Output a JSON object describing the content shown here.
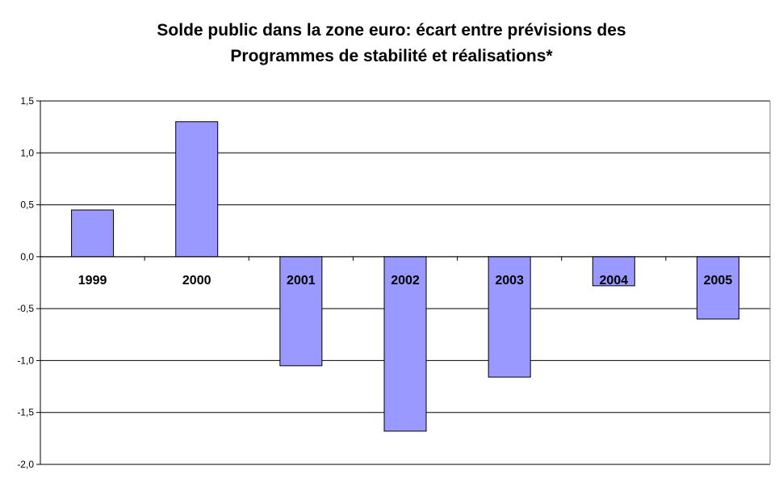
{
  "chart_data": {
    "type": "bar",
    "title": "Solde public dans la zone euro: écart entre prévisions des Programmes de stabilité et réalisations*",
    "title_lines": [
      "Solde public dans la zone euro: écart entre prévisions des",
      "Programmes de stabilité et réalisations*"
    ],
    "categories": [
      "1999",
      "2000",
      "2001",
      "2002",
      "2003",
      "2004",
      "2005"
    ],
    "values": [
      0.45,
      1.3,
      -1.05,
      -1.68,
      -1.16,
      -0.28,
      -0.6
    ],
    "ylim": [
      -2.0,
      1.5
    ],
    "yticks": [
      1.5,
      1.0,
      0.5,
      0.0,
      -0.5,
      -1.0,
      -1.5,
      -2.0
    ],
    "ytick_labels": [
      "1,5",
      "1,0",
      "0,5",
      "0,0",
      "-0,5",
      "-1,0",
      "-1,5",
      "-2,0"
    ],
    "xlabel": "",
    "ylabel": "",
    "grid": true,
    "legend": false,
    "bar_color": "#9999ff"
  }
}
